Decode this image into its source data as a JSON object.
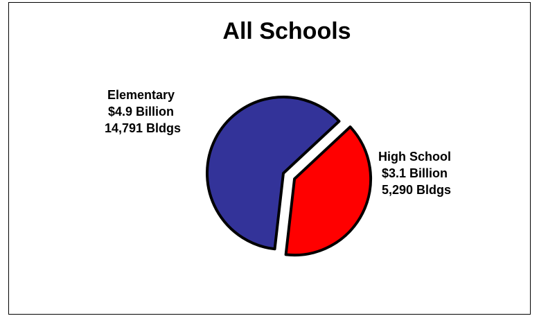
{
  "chart_data": {
    "type": "pie",
    "title": "All Schools",
    "slices": [
      {
        "label_lines": [
          "High School",
          "$3.1 Billion",
          "5,290 Bldgs"
        ],
        "value": 3.1,
        "buildings": 5290,
        "color": "#ff0000",
        "exploded": true
      },
      {
        "label_lines": [
          "Elementary",
          "$4.9 Billion",
          "14,791 Bldgs"
        ],
        "value": 4.9,
        "buildings": 14791,
        "color": "#333399",
        "exploded": false
      }
    ]
  }
}
